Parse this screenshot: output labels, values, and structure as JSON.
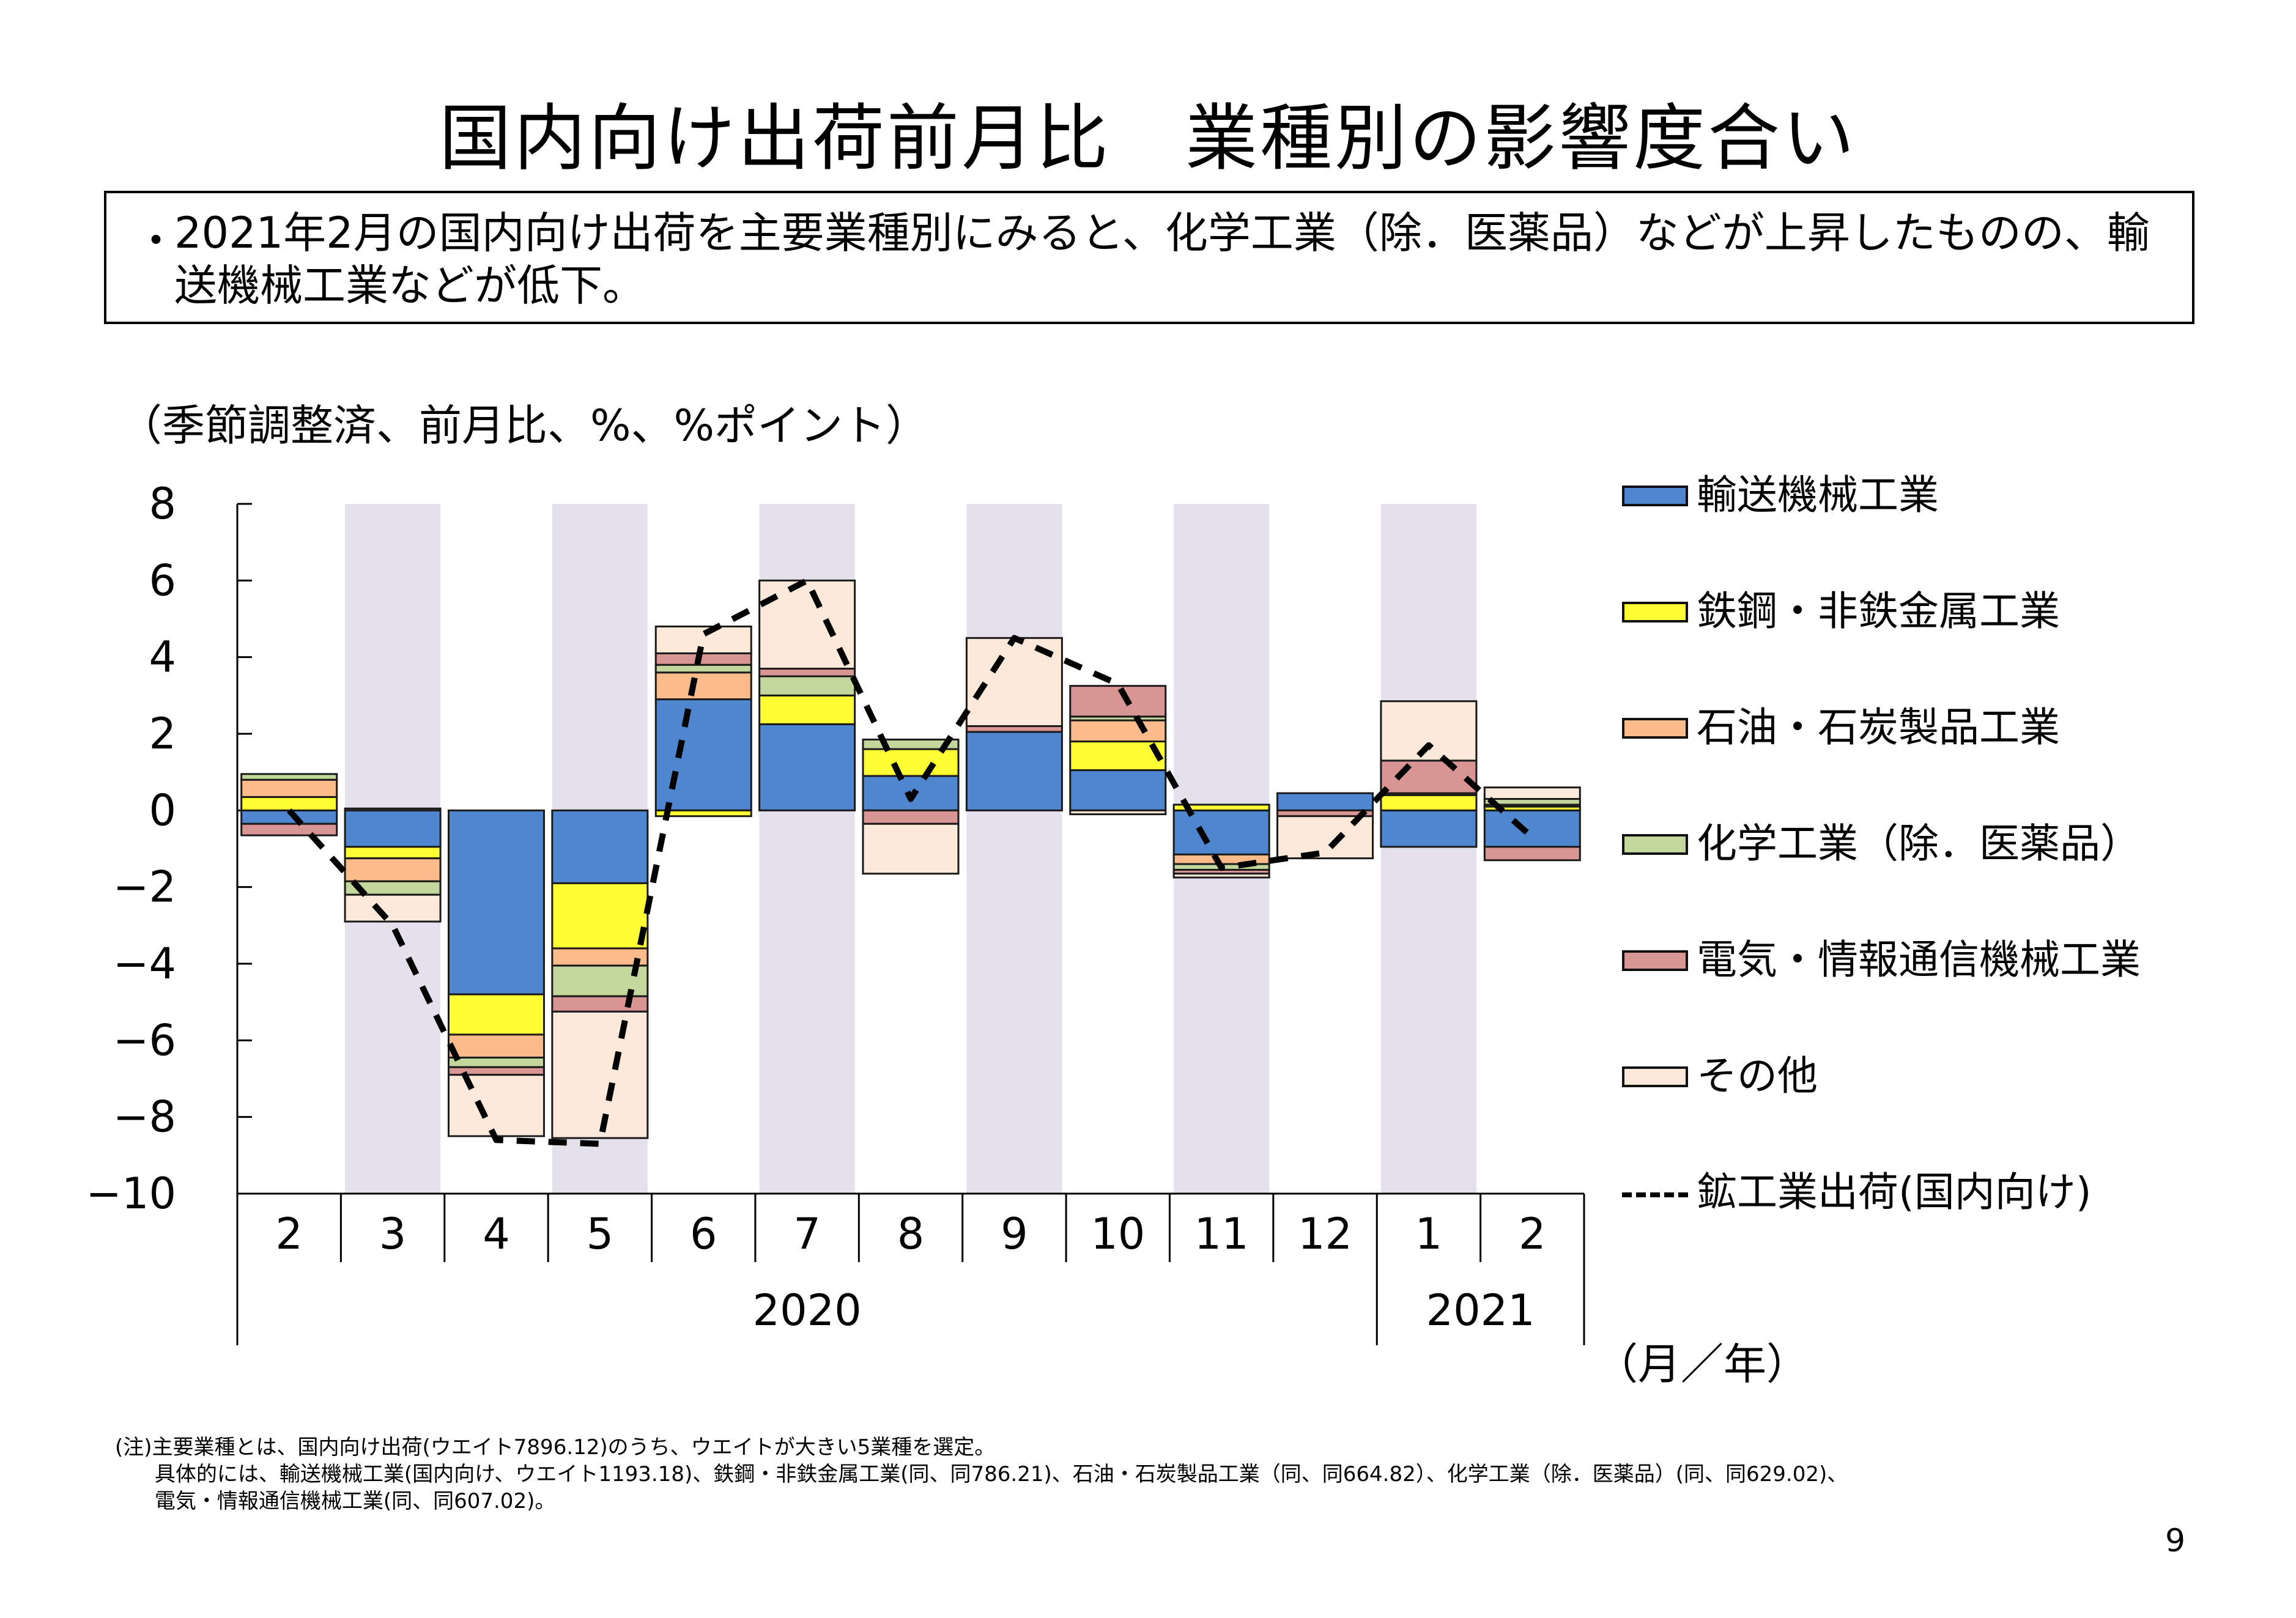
{
  "page": {
    "title": "国内向け出荷前月比　業種別の影響度合い",
    "summary_bullet": "・",
    "summary": "2021年2月の国内向け出荷を主要業種別にみると、化学工業（除．医薬品）などが上昇したものの、輸送機械工業などが低下。",
    "unit_note": "（季節調整済、前月比、%、%ポイント）",
    "x_unit": "（月／年）",
    "footnote_lines": [
      "(注)主要業種とは、国内向け出荷(ウエイト7896.12)のうち、ウエイトが大きい5業種を選定。",
      "      具体的には、輸送機械工業(国内向け、ウエイト1193.18)、鉄鋼・非鉄金属工業(同、同786.21)、石油・石炭製品工業（同、同664.82）、化学工業（除．医薬品）(同、同629.02)、",
      "      電気・情報通信機械工業(同、同607.02)。"
    ],
    "page_number": "9"
  },
  "chart_data": {
    "type": "bar",
    "stacked": true,
    "categories": [
      "2",
      "3",
      "4",
      "5",
      "6",
      "7",
      "8",
      "9",
      "10",
      "11",
      "12",
      "1",
      "2"
    ],
    "year_labels": [
      {
        "label": "2020",
        "from": 0,
        "to": 10
      },
      {
        "label": "2021",
        "from": 11,
        "to": 12
      }
    ],
    "ylim": [
      -10,
      8
    ],
    "yticks": [
      8,
      6,
      4,
      2,
      0,
      -2,
      -4,
      -6,
      -8,
      -10
    ],
    "ytick_labels": [
      "8",
      "6",
      "4",
      "2",
      "0",
      "−2",
      "−4",
      "−6",
      "−8",
      "−10"
    ],
    "shaded_categories": [
      1,
      3,
      5,
      7,
      9,
      11
    ],
    "colors": {
      "shade": "#e4e0ec",
      "border": "#1a1a1a",
      "line": "#000000"
    },
    "series": [
      {
        "name": "輸送機械工業",
        "color": "#4f86d0",
        "values": [
          -0.35,
          -0.95,
          -4.8,
          -1.9,
          2.9,
          2.25,
          0.9,
          2.05,
          1.05,
          -1.15,
          0.45,
          -0.95,
          -0.95
        ]
      },
      {
        "name": "鉄鋼・非鉄金属工業",
        "color": "#ffff33",
        "values": [
          0.35,
          -0.3,
          -1.05,
          -1.7,
          -0.15,
          0.75,
          0.7,
          0.0,
          0.75,
          0.15,
          0.0,
          0.4,
          0.1
        ]
      },
      {
        "name": "石油・石炭製品工業",
        "color": "#fbbb8a",
        "values": [
          0.45,
          -0.6,
          -0.6,
          -0.45,
          0.7,
          0.0,
          0.0,
          0.0,
          0.55,
          -0.25,
          0.0,
          0.0,
          0.05
        ]
      },
      {
        "name": "化学工業（除．医薬品）",
        "color": "#c3d69b",
        "values": [
          0.15,
          -0.35,
          -0.25,
          -0.8,
          0.2,
          0.5,
          0.25,
          0.0,
          0.1,
          -0.15,
          0.0,
          0.05,
          0.15
        ]
      },
      {
        "name": "電気・情報通信機械工業",
        "color": "#d99594",
        "values": [
          -0.3,
          0.05,
          -0.2,
          -0.4,
          0.3,
          0.2,
          -0.35,
          0.15,
          0.8,
          -0.1,
          -0.15,
          0.85,
          -0.35
        ]
      },
      {
        "name": "その他",
        "color": "#fde9d9",
        "values": [
          0.0,
          -0.7,
          -1.6,
          -3.3,
          0.7,
          2.3,
          -1.3,
          2.3,
          -0.1,
          -0.1,
          -1.1,
          1.55,
          0.3
        ]
      }
    ],
    "line": {
      "name": "鉱工業出荷(国内向け)",
      "values": [
        0.0,
        -3.0,
        -8.6,
        -8.7,
        4.6,
        6.0,
        0.3,
        4.5,
        3.3,
        -1.5,
        -1.1,
        1.7,
        -0.7
      ]
    },
    "legend_position": "right"
  }
}
